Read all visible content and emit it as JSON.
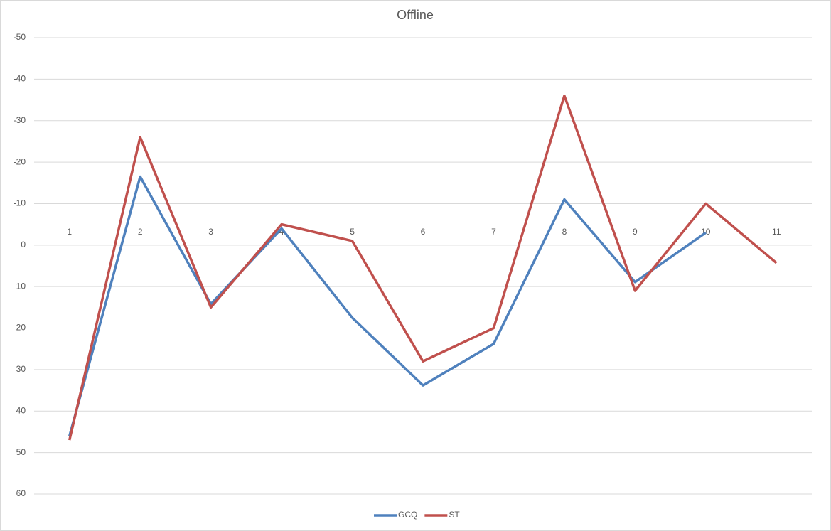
{
  "chart_data": {
    "type": "line",
    "title": "Offline",
    "categories": [
      "1",
      "2",
      "3",
      "4",
      "5",
      "6",
      "7",
      "8",
      "9",
      "10",
      "11"
    ],
    "series": [
      {
        "name": "GCQ",
        "color": "#4f81bd",
        "values": [
          46,
          -16.5,
          14.2,
          -4,
          17.5,
          33.8,
          23.8,
          -11,
          8.9,
          -3,
          null
        ]
      },
      {
        "name": "ST",
        "color": "#c0504d",
        "values": [
          47,
          -26,
          15,
          -5,
          -1,
          28,
          20,
          -36,
          11,
          -10,
          4.3
        ]
      }
    ],
    "ylim": [
      -50,
      60
    ],
    "yticks": [
      -50,
      -40,
      -30,
      -20,
      -10,
      0,
      10,
      20,
      30,
      40,
      50,
      60
    ],
    "y_reversed": true,
    "grid": true,
    "legend": "bottom"
  }
}
